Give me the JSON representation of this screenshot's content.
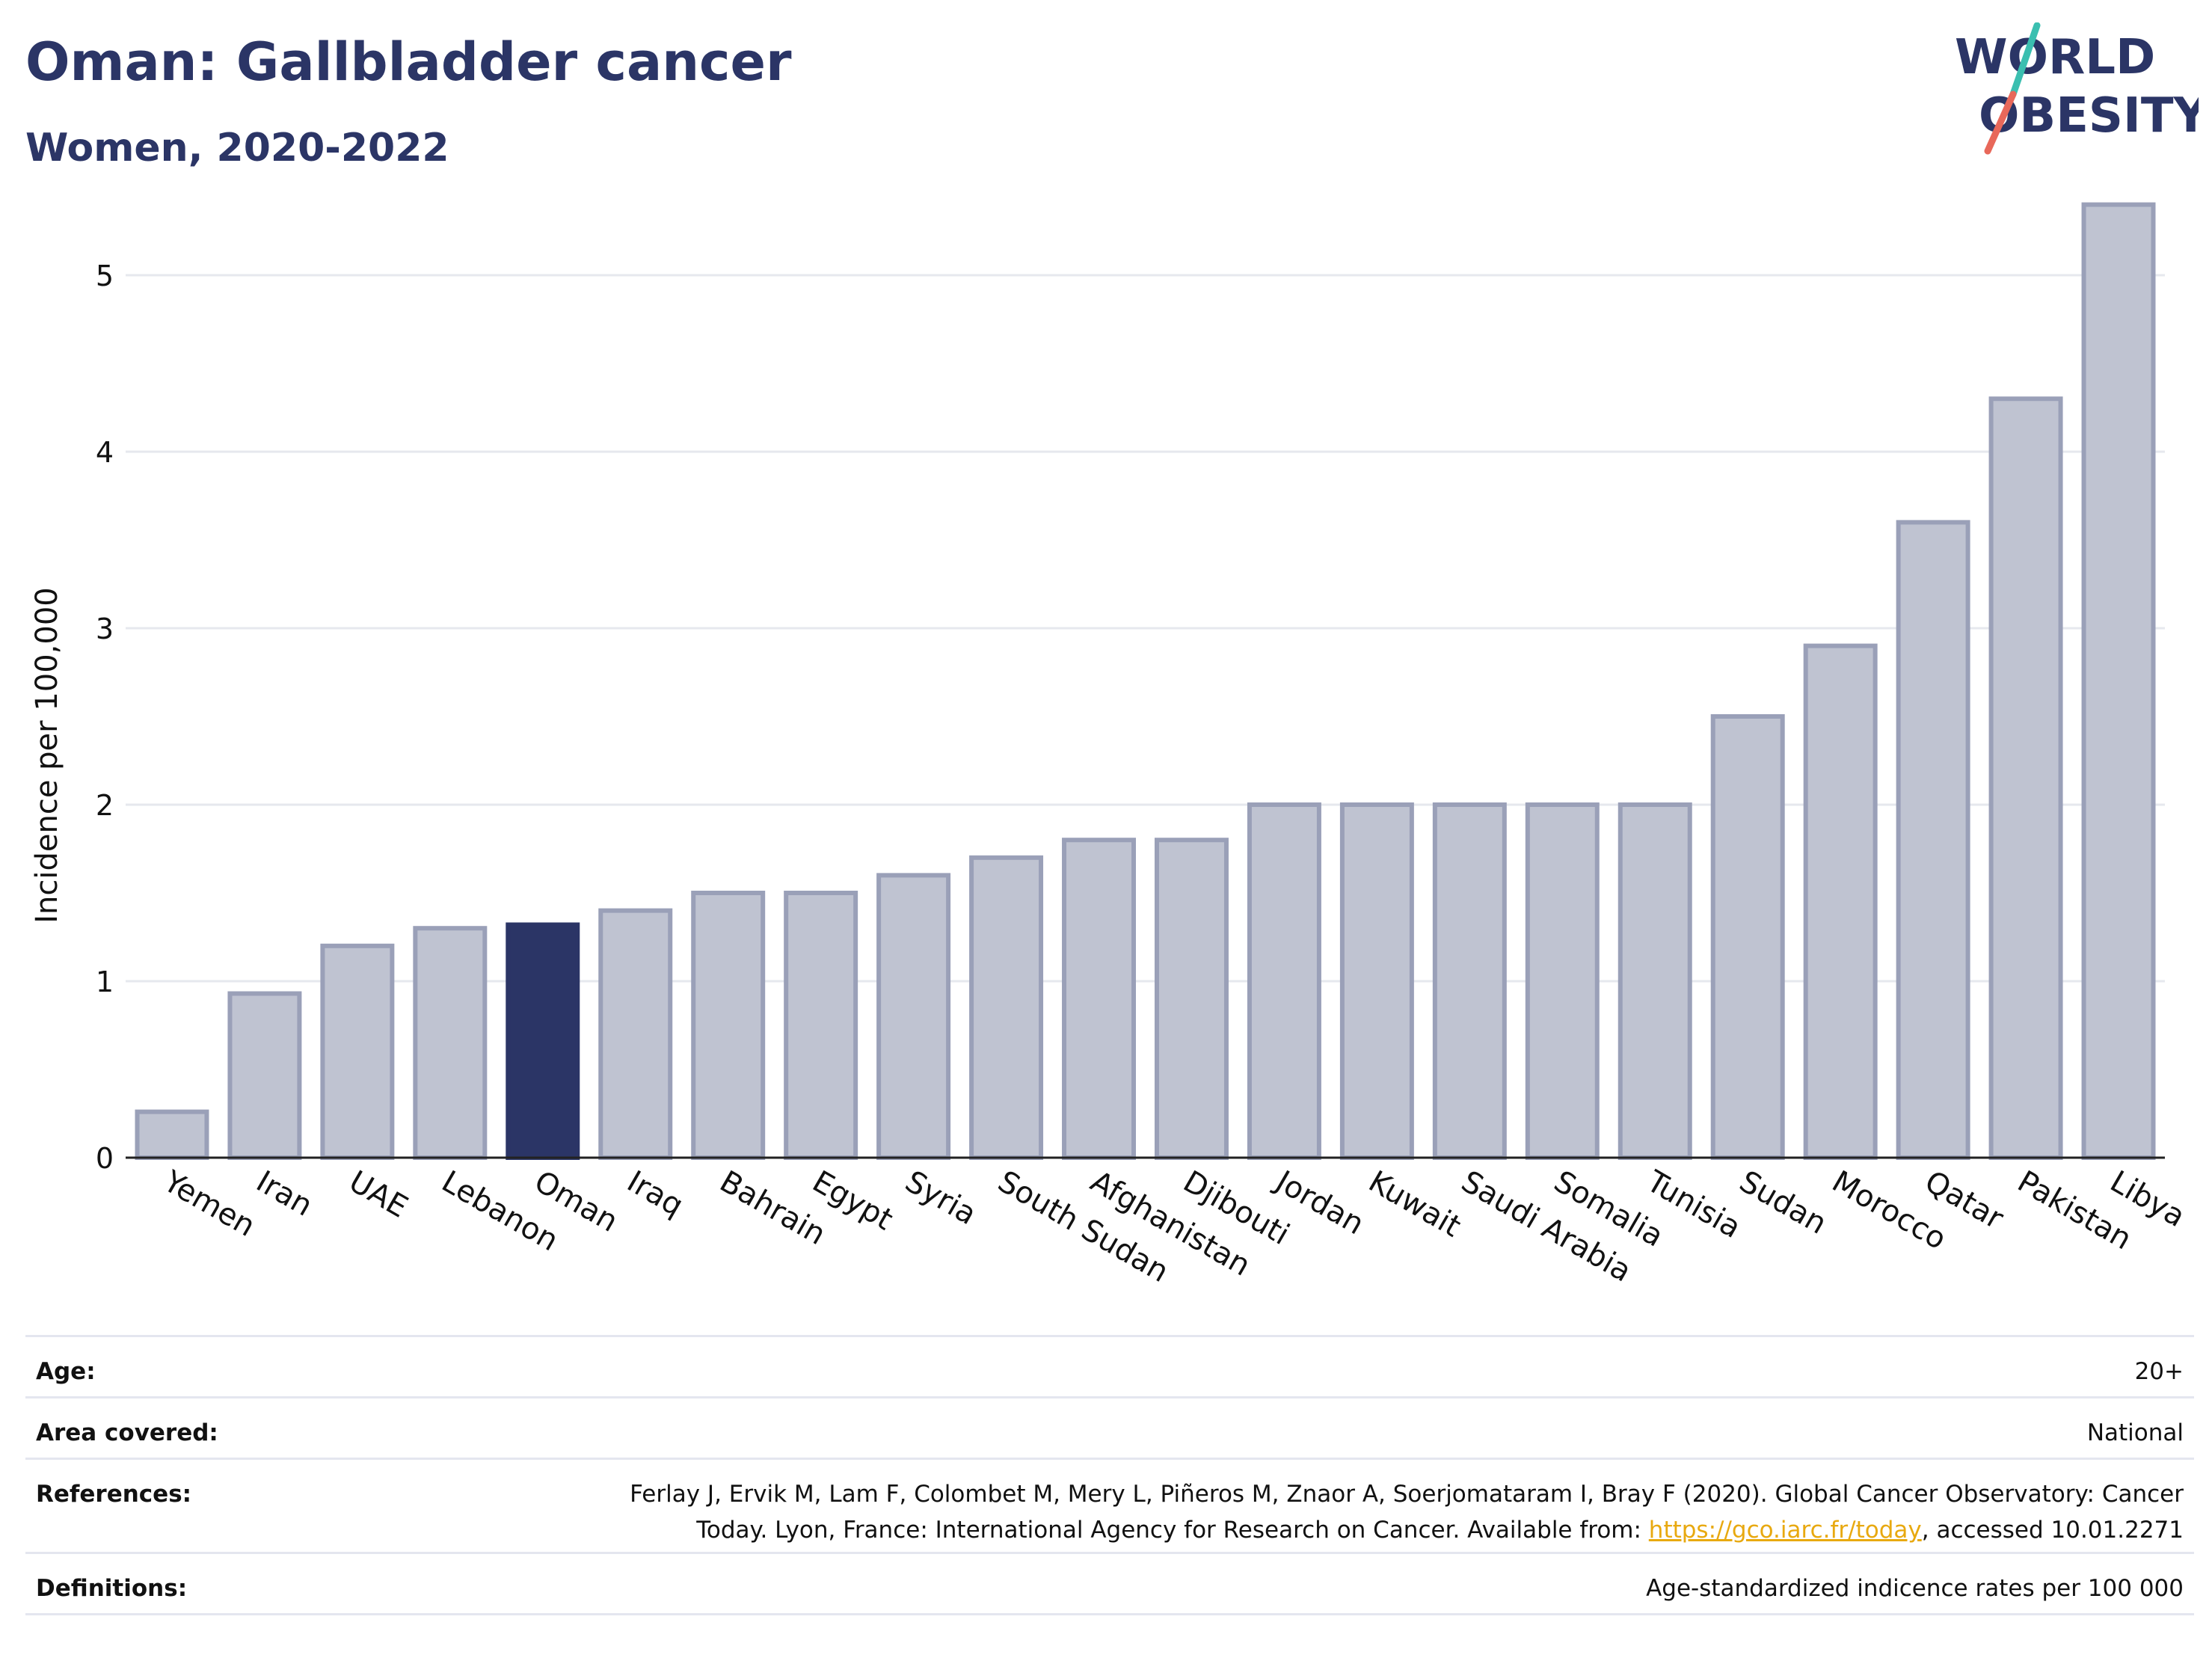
{
  "header": {
    "title": "Oman: Gallbladder cancer",
    "subtitle": "Women, 2020-2022"
  },
  "logo": {
    "line1": "WORLD",
    "line2": "OBESITY",
    "text_color": "#2b3566",
    "slash_colors": [
      "#3bbfb0",
      "#e8685a"
    ]
  },
  "chart_data": {
    "type": "bar",
    "title": "Oman: Gallbladder cancer",
    "subtitle": "Women, 2020-2022",
    "xlabel": "",
    "ylabel": "Incidence per 100,000",
    "categories": [
      "Yemen",
      "Iran",
      "UAE",
      "Lebanon",
      "Oman",
      "Iraq",
      "Bahrain",
      "Egypt",
      "Syria",
      "South Sudan",
      "Afghanistan",
      "Djibouti",
      "Jordan",
      "Kuwait",
      "Saudi Arabia",
      "Somalia",
      "Tunisia",
      "Sudan",
      "Morocco",
      "Qatar",
      "Pakistan",
      "Libya"
    ],
    "values": [
      0.26,
      0.93,
      1.2,
      1.3,
      1.32,
      1.4,
      1.5,
      1.5,
      1.6,
      1.7,
      1.8,
      1.8,
      2.0,
      2.0,
      2.0,
      2.0,
      2.0,
      2.5,
      2.9,
      3.6,
      4.3,
      5.4
    ],
    "highlight": "Oman",
    "ylim": [
      0,
      5.5
    ],
    "yticks": [
      0,
      1,
      2,
      3,
      4,
      5
    ],
    "grid": true,
    "colors": {
      "bar": "#bfc3d1",
      "bar_border": "#9aa0b8",
      "highlight": "#2b3566",
      "grid": "#e6e8ee",
      "axis": "#222222"
    }
  },
  "meta": {
    "age": {
      "label": "Age:",
      "value": "20+"
    },
    "area": {
      "label": "Area covered:",
      "value": "National"
    },
    "references": {
      "label": "References:",
      "line1": "Ferlay J, Ervik M, Lam F, Colombet M, Mery L, Piñeros M, Znaor A, Soerjomataram I, Bray F (2020). Global Cancer Observatory: Cancer",
      "line2_before": "Today. Lyon, France: International Agency for Research on Cancer. Available from: ",
      "link": "https://gco.iarc.fr/today",
      "line2_after": ", accessed 10.01.2271"
    },
    "definitions": {
      "label": "Definitions:",
      "value": "Age-standardized indicence rates per 100 000"
    }
  }
}
